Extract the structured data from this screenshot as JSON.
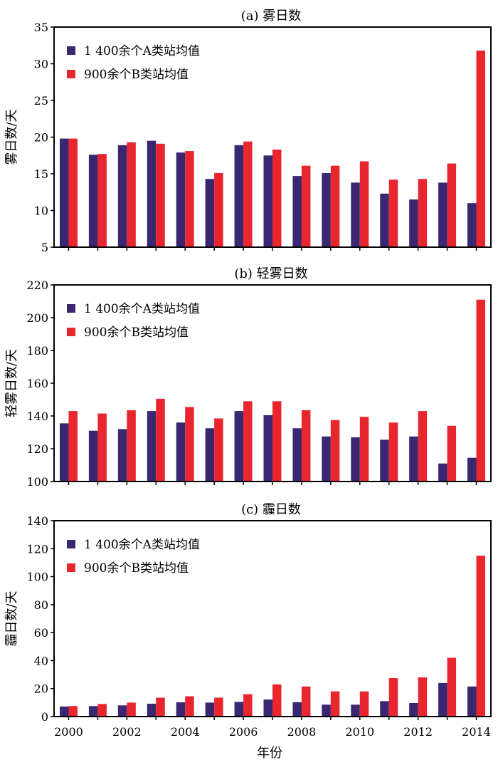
{
  "figure": {
    "xlabel": "年份",
    "colors": {
      "series_a": "#3b2672",
      "series_b": "#e8262d",
      "axis": "#000000"
    }
  },
  "chart_data": [
    {
      "type": "bar",
      "title": "(a) 雾日数",
      "ylabel": "雾日数/天",
      "xlabel": "",
      "ylim": [
        5,
        35
      ],
      "yticks": [
        5,
        10,
        15,
        20,
        25,
        30,
        35
      ],
      "categories": [
        "2000",
        "2001",
        "2002",
        "2003",
        "2004",
        "2005",
        "2006",
        "2007",
        "2008",
        "2009",
        "2010",
        "2011",
        "2012",
        "2013",
        "2014"
      ],
      "xtick_labels": [
        "2000",
        "2002",
        "2004",
        "2006",
        "2008",
        "2010",
        "2012",
        "2014"
      ],
      "legend_position": "top-left",
      "grid": false,
      "series": [
        {
          "name": "1 400余个A类站均值",
          "color": "#3b2672",
          "values": [
            19.8,
            17.6,
            18.9,
            19.5,
            17.9,
            14.3,
            18.9,
            17.5,
            14.7,
            15.1,
            13.8,
            12.3,
            11.5,
            13.8,
            11.0
          ]
        },
        {
          "name": "900余个B类站均值",
          "color": "#e8262d",
          "values": [
            19.8,
            17.7,
            19.3,
            19.1,
            18.1,
            15.1,
            19.4,
            18.3,
            16.1,
            16.1,
            16.7,
            14.2,
            14.3,
            16.4,
            31.8
          ]
        }
      ]
    },
    {
      "type": "bar",
      "title": "(b) 轻雾日数",
      "ylabel": "轻雾日数/天",
      "xlabel": "",
      "ylim": [
        100,
        220
      ],
      "yticks": [
        100,
        120,
        140,
        160,
        180,
        200,
        220
      ],
      "categories": [
        "2000",
        "2001",
        "2002",
        "2003",
        "2004",
        "2005",
        "2006",
        "2007",
        "2008",
        "2009",
        "2010",
        "2011",
        "2012",
        "2013",
        "2014"
      ],
      "xtick_labels": [
        "2000",
        "2002",
        "2004",
        "2006",
        "2008",
        "2010",
        "2012",
        "2014"
      ],
      "legend_position": "top-left",
      "grid": false,
      "series": [
        {
          "name": "1 400余个A类站均值",
          "color": "#3b2672",
          "values": [
            135.5,
            131,
            132,
            143,
            136,
            132.5,
            143,
            140.5,
            132.5,
            127.5,
            127,
            125.5,
            127.5,
            111,
            114.5
          ]
        },
        {
          "name": "900余个B类站均值",
          "color": "#e8262d",
          "values": [
            143,
            141.5,
            143.5,
            150.5,
            145.5,
            138.5,
            149,
            149,
            143.5,
            137.5,
            139.5,
            136,
            143,
            134,
            211
          ]
        }
      ]
    },
    {
      "type": "bar",
      "title": "(c) 霾日数",
      "ylabel": "霾日数/天",
      "xlabel": "年份",
      "ylim": [
        0,
        140
      ],
      "yticks": [
        0,
        20,
        40,
        60,
        80,
        100,
        120,
        140
      ],
      "categories": [
        "2000",
        "2001",
        "2002",
        "2003",
        "2004",
        "2005",
        "2006",
        "2007",
        "2008",
        "2009",
        "2010",
        "2011",
        "2012",
        "2013",
        "2014"
      ],
      "xtick_labels": [
        "2000",
        "2002",
        "2004",
        "2006",
        "2008",
        "2010",
        "2012",
        "2014"
      ],
      "legend_position": "top-left",
      "grid": false,
      "series": [
        {
          "name": "1 400余个A类站均值",
          "color": "#3b2672",
          "values": [
            7.2,
            7.5,
            8,
            9.2,
            10.2,
            10,
            10.5,
            12.2,
            10.3,
            8.5,
            8.5,
            11,
            9.7,
            24,
            21.5
          ]
        },
        {
          "name": "900余个B类站均值",
          "color": "#e8262d",
          "values": [
            7.5,
            9,
            10,
            13.5,
            14.5,
            13.5,
            16,
            23,
            21.5,
            18,
            18,
            27.5,
            28,
            42,
            115
          ]
        }
      ]
    }
  ]
}
